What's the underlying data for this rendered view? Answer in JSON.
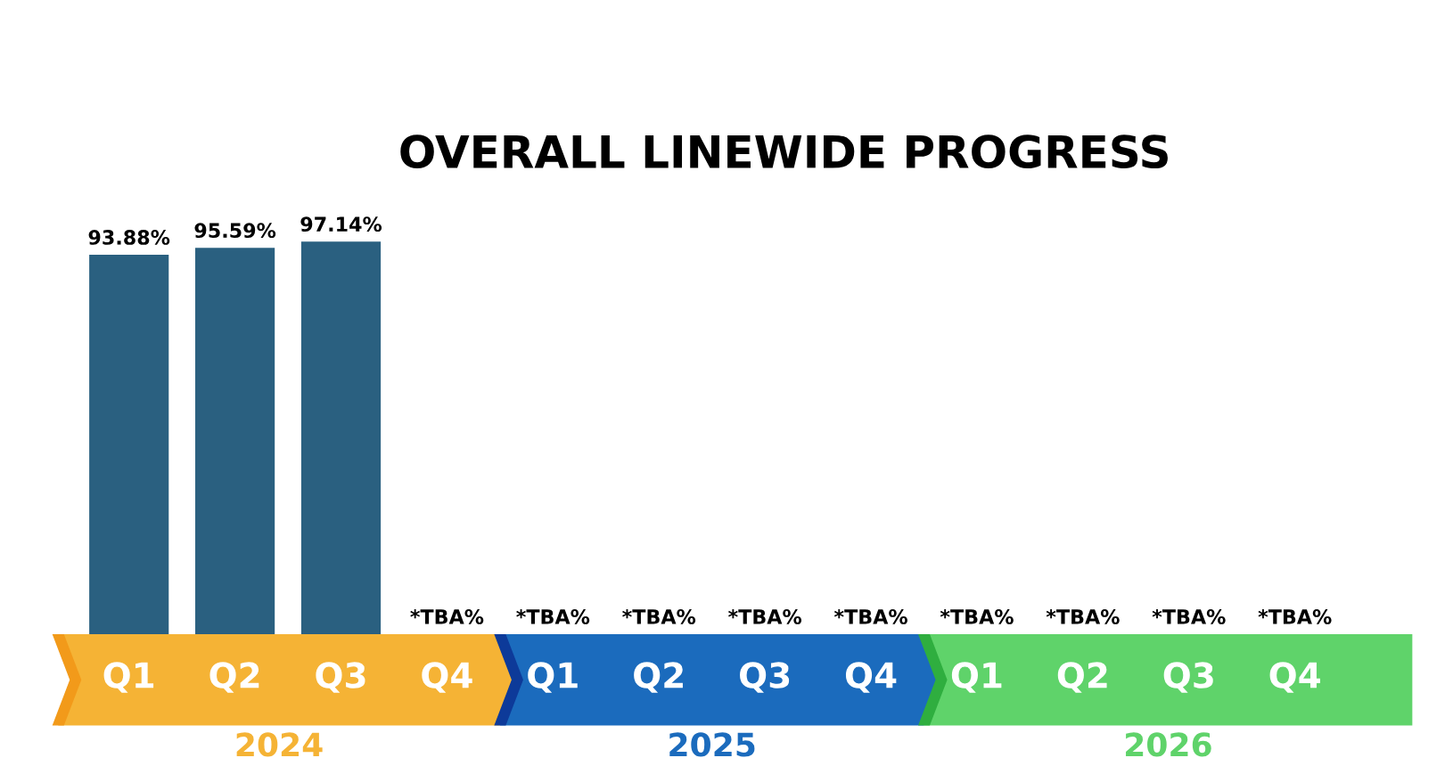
{
  "chart_data": {
    "type": "bar",
    "title": "OVERALL LINEWIDE PROGRESS",
    "categories": [
      "Q1",
      "Q2",
      "Q3",
      "Q4",
      "Q1",
      "Q2",
      "Q3",
      "Q4",
      "Q1",
      "Q2",
      "Q3",
      "Q4"
    ],
    "series": [
      {
        "color": "#2a6080",
        "values": [
          93.88,
          95.59,
          97.14,
          null,
          null,
          null,
          null,
          null,
          null,
          null,
          null,
          null
        ],
        "value_labels": [
          "93.88%",
          "95.59%",
          "97.14%",
          "*TBA%",
          "*TBA%",
          "*TBA%",
          "*TBA%",
          "*TBA%",
          "*TBA%",
          "*TBA%",
          "*TBA%",
          "*TBA%"
        ]
      }
    ],
    "tick_labels": "x",
    "annotations": [
      "2024",
      "2025",
      "2026"
    ]
  }
}
